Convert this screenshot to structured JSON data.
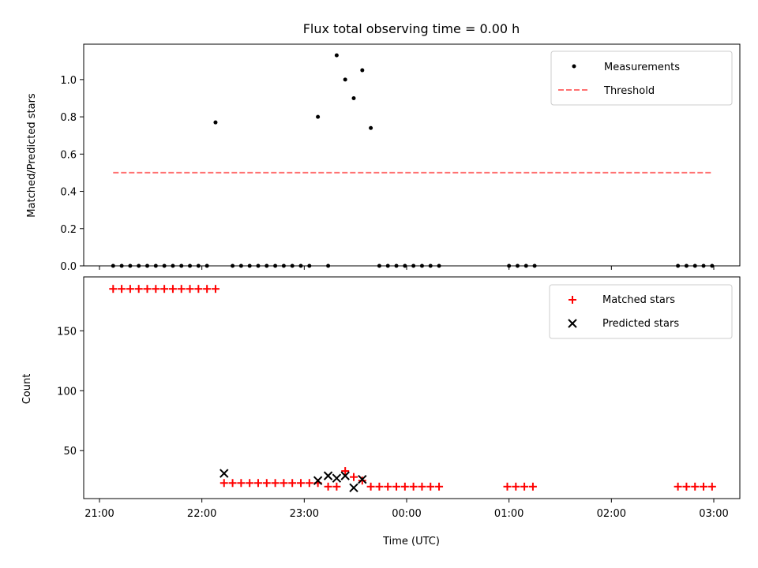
{
  "chart_data": [
    {
      "type": "scatter",
      "title": "Flux total observing time = 0.00 h",
      "xlabel": "",
      "ylabel": "Matched/Predicted stars",
      "ylim": [
        0,
        1.19
      ],
      "x_ticks": [
        "21:00",
        "22:00",
        "23:00",
        "00:00",
        "01:00",
        "02:00",
        "03:00"
      ],
      "y_ticks": [
        "0.0",
        "0.2",
        "0.4",
        "0.6",
        "0.8",
        "1.0"
      ],
      "legend_placement": "top-right",
      "series": [
        {
          "name": "Measurements",
          "marker": "dot",
          "color": "#000000",
          "x": [
            "21:08",
            "21:13",
            "21:18",
            "21:23",
            "21:28",
            "21:33",
            "21:38",
            "21:43",
            "21:48",
            "21:53",
            "21:58",
            "22:03",
            "22:08",
            "22:18",
            "22:23",
            "22:28",
            "22:33",
            "22:38",
            "22:43",
            "22:48",
            "22:53",
            "22:58",
            "23:03",
            "23:08",
            "23:14",
            "23:19",
            "23:24",
            "23:29",
            "23:34",
            "23:39",
            "23:44",
            "23:49",
            "23:54",
            "23:59",
            "00:04",
            "00:09",
            "00:14",
            "00:19",
            "01:00",
            "01:05",
            "01:10",
            "01:15",
            "02:39",
            "02:44",
            "02:49",
            "02:54",
            "02:59"
          ],
          "y": [
            0,
            0,
            0,
            0,
            0,
            0,
            0,
            0,
            0,
            0,
            0,
            0,
            0.77,
            0,
            0,
            0,
            0,
            0,
            0,
            0,
            0,
            0,
            0,
            0.8,
            0,
            1.13,
            1.0,
            0.9,
            1.05,
            0.74,
            0,
            0,
            0,
            0,
            0,
            0,
            0,
            0,
            0,
            0,
            0,
            0,
            0,
            0,
            0,
            0,
            0
          ]
        },
        {
          "name": "Threshold",
          "style": "dashed",
          "color": "#ff7070",
          "x": [
            "21:08",
            "02:59"
          ],
          "y": [
            0.5,
            0.5
          ]
        }
      ]
    },
    {
      "type": "scatter",
      "title": "",
      "xlabel": "Time (UTC)",
      "ylabel": "Count",
      "ylim": [
        10,
        195
      ],
      "x_ticks": [
        "21:00",
        "22:00",
        "23:00",
        "00:00",
        "01:00",
        "02:00",
        "03:00"
      ],
      "y_ticks": [
        "50",
        "100",
        "150"
      ],
      "legend_placement": "top-right",
      "series": [
        {
          "name": "Matched stars",
          "marker": "plus",
          "color": "#ff0000",
          "x": [
            "21:08",
            "21:13",
            "21:18",
            "21:23",
            "21:28",
            "21:33",
            "21:38",
            "21:43",
            "21:48",
            "21:53",
            "21:58",
            "22:03",
            "22:08",
            "22:13",
            "22:18",
            "22:23",
            "22:28",
            "22:33",
            "22:38",
            "22:43",
            "22:48",
            "22:53",
            "22:58",
            "23:03",
            "23:08",
            "23:14",
            "23:19",
            "23:24",
            "23:29",
            "23:34",
            "23:39",
            "23:44",
            "23:49",
            "23:54",
            "23:59",
            "00:04",
            "00:09",
            "00:14",
            "00:19",
            "00:59",
            "01:04",
            "01:09",
            "01:14",
            "02:39",
            "02:44",
            "02:49",
            "02:54",
            "02:59"
          ],
          "y": [
            185,
            185,
            185,
            185,
            185,
            185,
            185,
            185,
            185,
            185,
            185,
            185,
            185,
            23,
            23,
            23,
            23,
            23,
            23,
            23,
            23,
            23,
            23,
            23,
            23,
            20,
            20,
            33,
            28,
            25,
            20,
            20,
            20,
            20,
            20,
            20,
            20,
            20,
            20,
            20,
            20,
            20,
            20,
            20,
            20,
            20,
            20,
            20
          ]
        },
        {
          "name": "Predicted stars",
          "marker": "x",
          "color": "#000000",
          "x": [
            "22:13",
            "23:08",
            "23:14",
            "23:19",
            "23:24",
            "23:29",
            "23:34"
          ],
          "y": [
            31,
            25,
            29,
            27,
            29,
            19,
            26
          ]
        }
      ]
    }
  ]
}
